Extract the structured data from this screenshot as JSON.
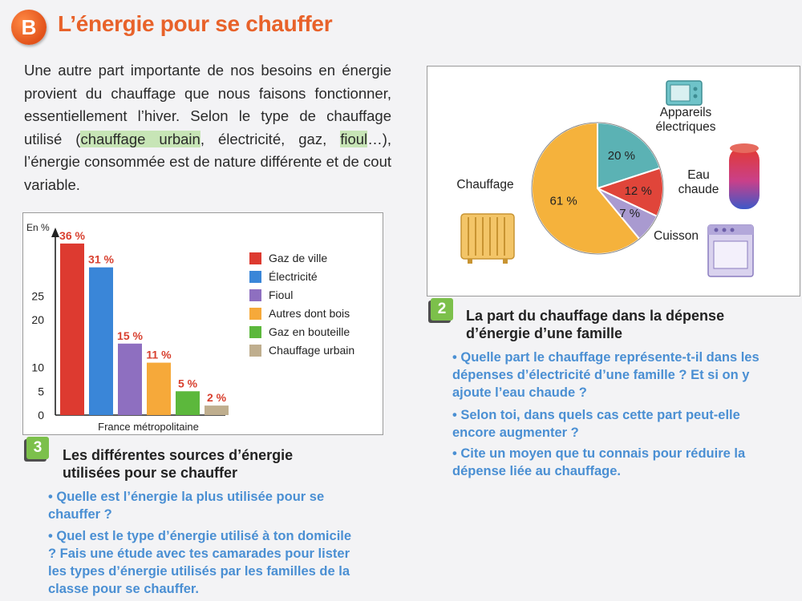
{
  "section": {
    "letter": "B",
    "title": "L’énergie pour se chauffer"
  },
  "intro": {
    "text_1": "Une autre part importante de nos besoins en énergie provient du chauffage que nous faisons fonctionner, essentiellement l’hiver. Selon le type de chauffage utilisé (",
    "hl_1": "chauffage urbain",
    "text_2": ", électricité, gaz, ",
    "hl_2": "fioul",
    "text_3": "…), l’énergie consommée est de nature différente et de cout variable."
  },
  "doc3": {
    "number": "3",
    "title_line1": "Les différentes sources d’énergie",
    "title_line2": "utilisées pour se chauffer",
    "questions": [
      "• Quelle est l’énergie la plus utilisée pour se chauffer ?",
      "• Quel est le type d’énergie utilisé à ton domicile ? Fais une étude avec tes camarades pour lister les types d’énergie utilisés par les familles de la classe pour se chauffer."
    ]
  },
  "doc2": {
    "number": "2",
    "title_line1": "La part du chauffage dans la dépense",
    "title_line2": "d’énergie d’une famille",
    "questions": [
      "• Quelle part le chauffage représente-t-il dans les dépenses d’électricité d’une famille ? Et si on y ajoute l’eau chaude ?",
      "• Selon toi, dans quels cas cette part peut-elle encore augmenter ?",
      "• Cite un moyen que tu connais pour réduire la dépense liée au chauffage."
    ]
  },
  "chart_data": [
    {
      "type": "bar",
      "ylabel": "En %",
      "xlabel": "France métropolitaine",
      "y_ticks": [
        0,
        5,
        10,
        20,
        25
      ],
      "ylim": [
        0,
        38
      ],
      "categories": [
        "Gaz de ville",
        "Électricité",
        "Fioul",
        "Autres dont bois",
        "Gaz en bouteille",
        "Chauffage urbain"
      ],
      "values": [
        36,
        31,
        15,
        11,
        5,
        2
      ],
      "value_labels": [
        "36 %",
        "31 %",
        "15 %",
        "11 %",
        "5 %",
        "2 %"
      ],
      "colors": [
        "#dd3a30",
        "#3a86d8",
        "#8e6fc0",
        "#f6a93a",
        "#5cb83c",
        "#bfae8e"
      ],
      "legend_position": "right"
    },
    {
      "type": "pie",
      "labels": [
        "Chauffage",
        "Appareils électriques",
        "Eau chaude",
        "Cuisson"
      ],
      "label_lines": [
        [
          "Chauffage"
        ],
        [
          "Appareils",
          "électriques"
        ],
        [
          "Eau",
          "chaude"
        ],
        [
          "Cuisson"
        ]
      ],
      "values": [
        61,
        20,
        12,
        7
      ],
      "value_labels": [
        "61 %",
        "20 %",
        "12 %",
        "7 %"
      ],
      "colors": [
        "#f5b23c",
        "#5bb2b4",
        "#e0453a",
        "#a99ad0"
      ]
    }
  ]
}
